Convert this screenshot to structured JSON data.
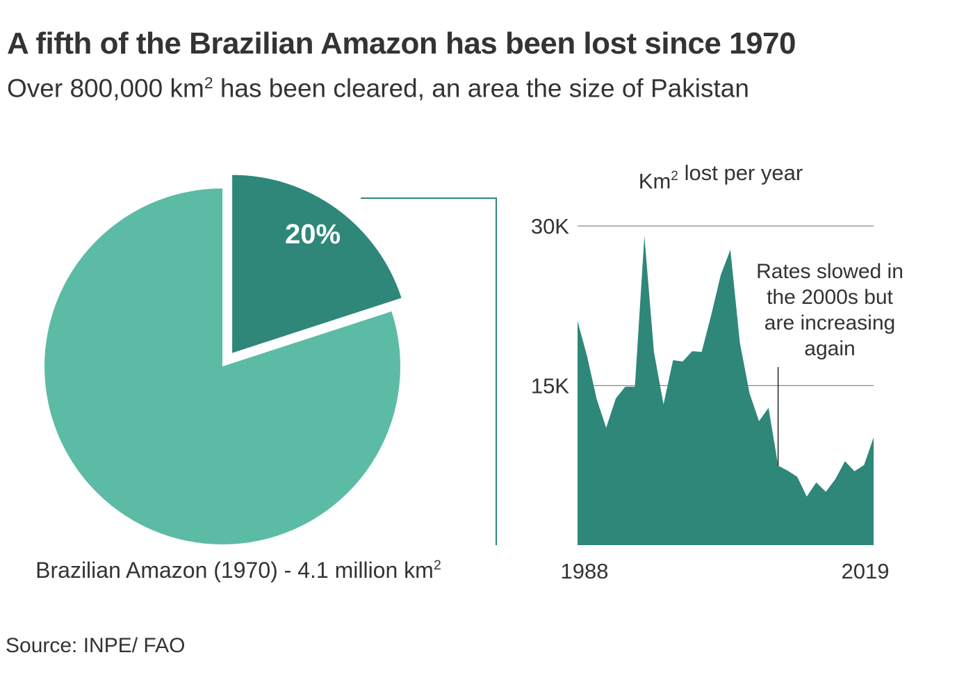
{
  "title": "A fifth of the Brazilian Amazon has been lost since 1970",
  "subtitle": "Over 800,000 km² has been cleared, an area the size of Pakistan",
  "source": "Source: INPE/ FAO",
  "colors": {
    "lost": "#2e8779",
    "remaining": "#5cbba5",
    "text": "#333333",
    "grid": "#888888"
  },
  "chart_data": [
    {
      "type": "pie",
      "slices": [
        {
          "name": "Lost",
          "value": 20,
          "label": "20%"
        },
        {
          "name": "Remaining",
          "value": 80,
          "label": ""
        }
      ],
      "caption": "Brazilian Amazon (1970) - 4.1 million km²"
    },
    {
      "type": "area",
      "title": "Km² lost per year",
      "x": [
        1988,
        1989,
        1990,
        1991,
        1992,
        1993,
        1994,
        1995,
        1996,
        1997,
        1998,
        1999,
        2000,
        2001,
        2002,
        2003,
        2004,
        2005,
        2006,
        2007,
        2008,
        2009,
        2010,
        2011,
        2012,
        2013,
        2014,
        2015,
        2016,
        2017,
        2018,
        2019
      ],
      "values": [
        21050,
        17770,
        13730,
        11030,
        13786,
        14896,
        14896,
        29059,
        18161,
        13227,
        17383,
        17259,
        18226,
        18165,
        21651,
        25396,
        27772,
        19014,
        14286,
        11651,
        12911,
        7464,
        7000,
        6418,
        4571,
        5891,
        5012,
        6207,
        7893,
        6947,
        7536,
        10129
      ],
      "ylim": [
        0,
        30000
      ],
      "ytick_labels": [
        {
          "value": 15000,
          "label": "15K"
        },
        {
          "value": 30000,
          "label": "30K"
        }
      ],
      "xtick_labels": [
        {
          "value": 1988,
          "label": "1988"
        },
        {
          "value": 2019,
          "label": "2019"
        }
      ],
      "annotation": {
        "x": 2009,
        "lines": [
          "Rates slowed in",
          "the 2000s but",
          "are increasing",
          "again"
        ]
      }
    }
  ]
}
